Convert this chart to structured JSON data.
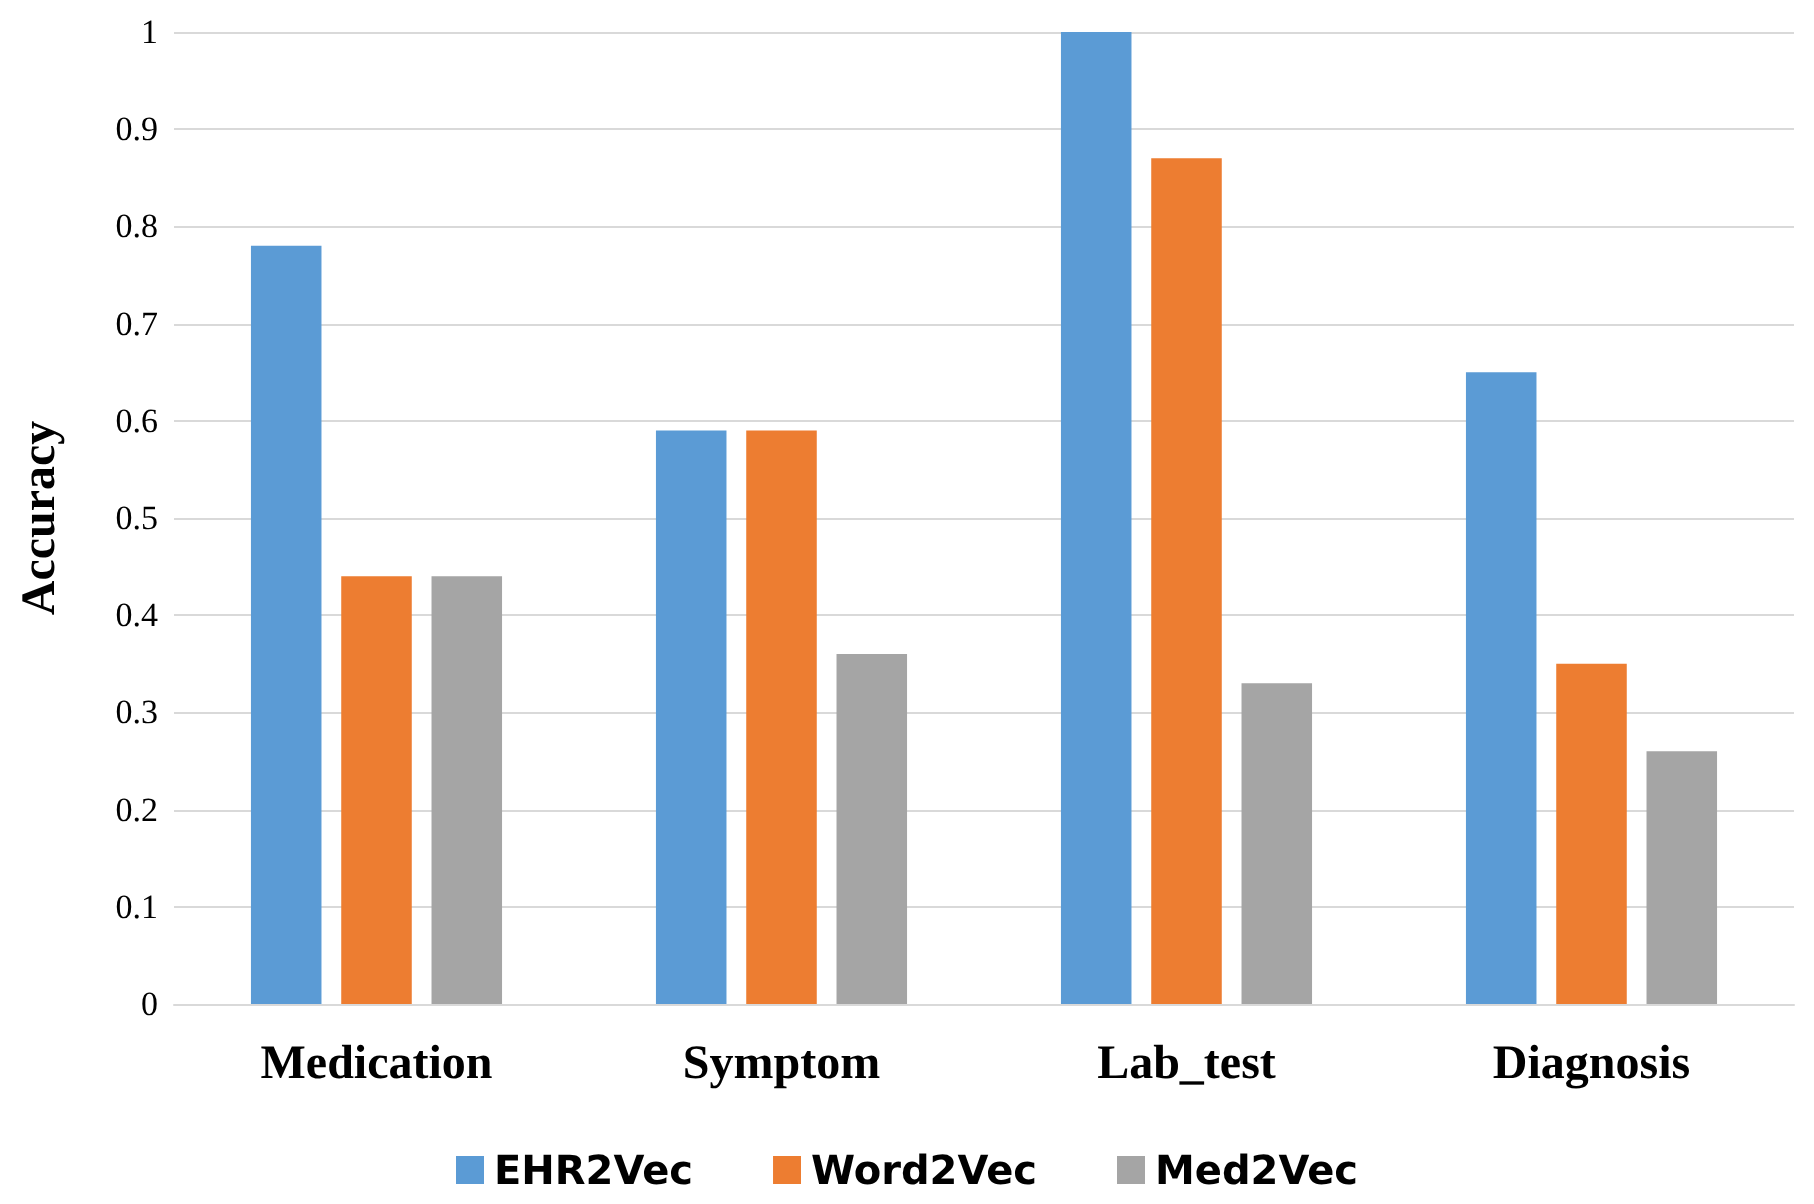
{
  "chart_data": {
    "type": "bar",
    "ylabel": "Accuracy",
    "categories": [
      "Medication",
      "Symptom",
      "Lab_test",
      "Diagnosis"
    ],
    "series": [
      {
        "name": "EHR2Vec",
        "color": "#5b9bd5",
        "values": [
          0.78,
          0.59,
          1,
          0.65
        ]
      },
      {
        "name": "Word2Vec",
        "color": "#ed7d31",
        "values": [
          0.44,
          0.59,
          0.87,
          0.35
        ]
      },
      {
        "name": "Med2Vec",
        "color": "#a5a5a5",
        "values": [
          0.44,
          0.36,
          0.33,
          0.26
        ]
      }
    ],
    "ylim": [
      0,
      1
    ],
    "yticks": [
      0,
      0.1,
      0.2,
      0.3,
      0.4,
      0.5,
      0.6,
      0.7,
      0.8,
      0.9,
      1
    ],
    "grid": "y",
    "legend": "bottom"
  }
}
